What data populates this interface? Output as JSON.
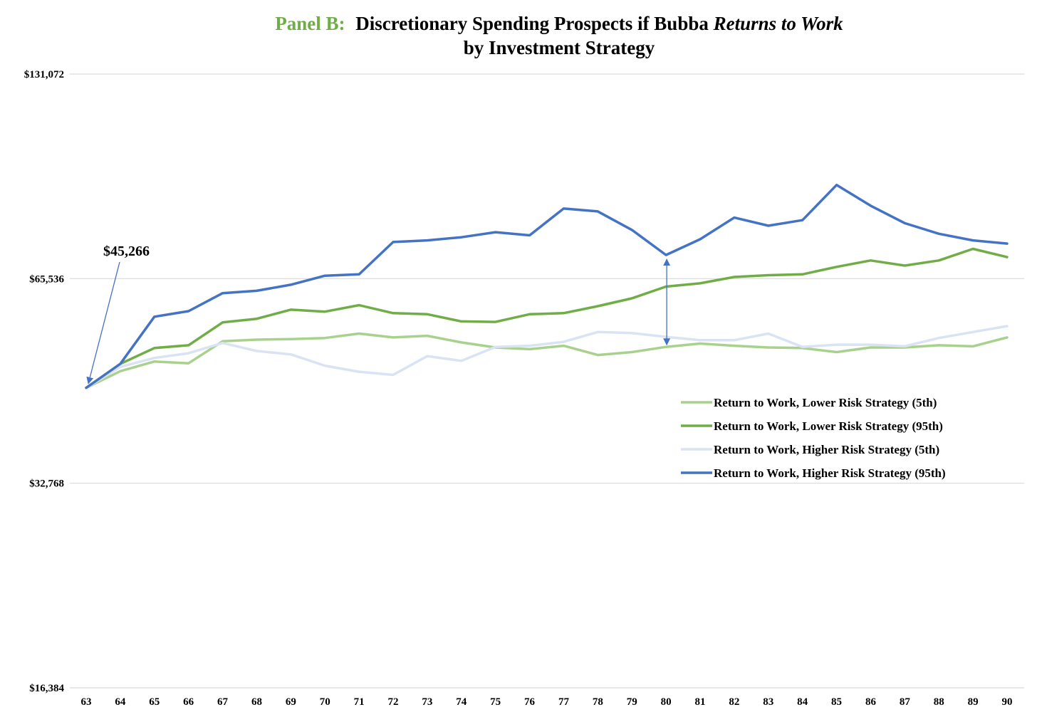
{
  "chart_data": {
    "type": "line",
    "title_prefix": "Panel B:",
    "title_main": "Discretionary Spending Prospects if Bubba ",
    "title_italic": "Returns to Work",
    "subtitle": "by Investment Strategy",
    "x": [
      63,
      64,
      65,
      66,
      67,
      68,
      69,
      70,
      71,
      72,
      73,
      74,
      75,
      76,
      77,
      78,
      79,
      80,
      81,
      82,
      83,
      84,
      85,
      86,
      87,
      88,
      89,
      90
    ],
    "x_tick_labels": [
      "63",
      "64",
      "65",
      "66",
      "67",
      "68",
      "69",
      "70",
      "71",
      "72",
      "73",
      "74",
      "75",
      "76",
      "77",
      "78",
      "79",
      "80",
      "81",
      "82",
      "83",
      "84",
      "85",
      "86",
      "87",
      "88",
      "89",
      "90"
    ],
    "y_scale": "log2",
    "ylim": [
      16384,
      131072
    ],
    "y_ticks": [
      16384,
      32768,
      65536,
      131072
    ],
    "y_tick_labels": [
      "$16,384",
      "$32,768",
      "$65,536",
      "$131,072"
    ],
    "series": [
      {
        "name": "Return to Work, Lower Risk Strategy (5th)",
        "color": "#a9d18e",
        "values": [
          45266,
          47900,
          49500,
          49200,
          53000,
          53300,
          53400,
          53600,
          54400,
          53700,
          54000,
          52800,
          51900,
          51600,
          52200,
          50600,
          51100,
          52000,
          52600,
          52200,
          51900,
          51800,
          51100,
          51900,
          51900,
          52300,
          52100,
          53700
        ]
      },
      {
        "name": "Return to Work, Lower Risk Strategy (95th)",
        "color": "#70ad47",
        "values": [
          45266,
          49100,
          51800,
          52300,
          56500,
          57200,
          59000,
          58600,
          59900,
          58300,
          58100,
          56700,
          56600,
          58100,
          58300,
          59700,
          61300,
          63800,
          64500,
          65900,
          66300,
          66500,
          68200,
          69700,
          68500,
          69700,
          72500,
          70500
        ]
      },
      {
        "name": "Return to Work, Higher Risk Strategy (5th)",
        "color": "#dae3f3",
        "values": [
          45266,
          48600,
          50100,
          50900,
          52700,
          51300,
          50700,
          48800,
          47800,
          47300,
          50400,
          49600,
          52000,
          52200,
          52900,
          54700,
          54500,
          53800,
          53200,
          53200,
          54400,
          52000,
          52400,
          52400,
          52100,
          53600,
          54700,
          55800
        ]
      },
      {
        "name": "Return to Work, Higher Risk Strategy (95th)",
        "color": "#4472c4",
        "values": [
          45266,
          49100,
          57600,
          58700,
          62400,
          62900,
          64200,
          66200,
          66500,
          74200,
          74600,
          75400,
          76700,
          75900,
          83100,
          82300,
          77300,
          71000,
          74900,
          80600,
          78400,
          79900,
          90000,
          83900,
          79100,
          76300,
          74600,
          73800
        ]
      }
    ],
    "annotations": [
      {
        "text": "$45,266",
        "points_to_x": 63,
        "points_to_y": 45266
      },
      {
        "type": "double-arrow",
        "x": 80,
        "from_y": 52000,
        "to_y": 71000
      }
    ],
    "legend_position": "right-middle"
  }
}
